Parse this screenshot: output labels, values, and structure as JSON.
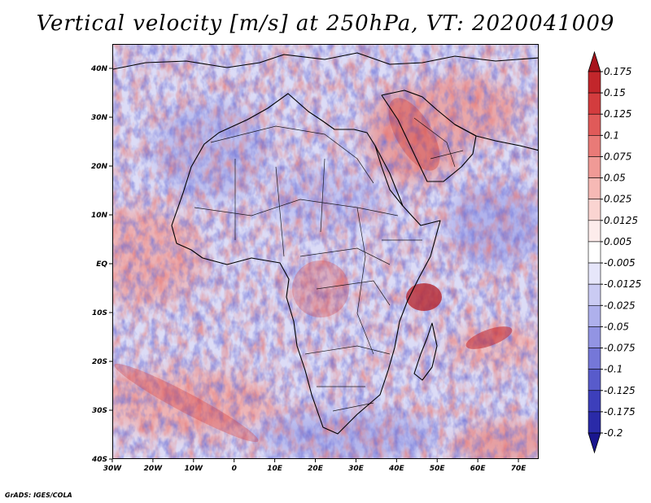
{
  "title": "Vertical velocity [m/s] at 250hPa, VT: 2020041009",
  "footer": "GrADS: IGES/COLA",
  "colors": {
    "positive_strong": "#b31e26",
    "negative_strong": "#1e24a8",
    "neutral": "#ffffff",
    "coastline": "#000000"
  },
  "chart_data": {
    "type": "heatmap",
    "variable": "Vertical velocity",
    "units": "m/s",
    "level": "250hPa",
    "valid_time": "2020041009",
    "lon_range": [
      -30,
      75
    ],
    "lat_range": [
      -40,
      45
    ],
    "x_ticks": [
      {
        "value": -30,
        "label": "30W"
      },
      {
        "value": -20,
        "label": "20W"
      },
      {
        "value": -10,
        "label": "10W"
      },
      {
        "value": 0,
        "label": "0"
      },
      {
        "value": 10,
        "label": "10E"
      },
      {
        "value": 20,
        "label": "20E"
      },
      {
        "value": 30,
        "label": "30E"
      },
      {
        "value": 40,
        "label": "40E"
      },
      {
        "value": 50,
        "label": "50E"
      },
      {
        "value": 60,
        "label": "60E"
      },
      {
        "value": 70,
        "label": "70E"
      }
    ],
    "y_ticks": [
      {
        "value": 40,
        "label": "40N"
      },
      {
        "value": 30,
        "label": "30N"
      },
      {
        "value": 20,
        "label": "20N"
      },
      {
        "value": 10,
        "label": "10N"
      },
      {
        "value": 0,
        "label": "EQ"
      },
      {
        "value": -10,
        "label": "10S"
      },
      {
        "value": -20,
        "label": "20S"
      },
      {
        "value": -30,
        "label": "30S"
      },
      {
        "value": -40,
        "label": "40S"
      }
    ],
    "colorbar": {
      "levels": [
        {
          "label": "0.175",
          "color": "#a8141c"
        },
        {
          "label": "0.15",
          "color": "#c2262b"
        },
        {
          "label": "0.125",
          "color": "#d33c3e"
        },
        {
          "label": "0.1",
          "color": "#e05a59"
        },
        {
          "label": "0.075",
          "color": "#e97a77"
        },
        {
          "label": "0.05",
          "color": "#f09a96"
        },
        {
          "label": "0.025",
          "color": "#f6b9b5"
        },
        {
          "label": "0.0125",
          "color": "#fad4d1"
        },
        {
          "label": "0.005",
          "color": "#fdeceb"
        },
        {
          "label": "-0.005",
          "color": "#ffffff"
        },
        {
          "label": "-0.0125",
          "color": "#e6e6fa"
        },
        {
          "label": "-0.025",
          "color": "#cacbf3"
        },
        {
          "label": "-0.05",
          "color": "#aeb0ec"
        },
        {
          "label": "-0.075",
          "color": "#9294e3"
        },
        {
          "label": "-0.1",
          "color": "#7577d8"
        },
        {
          "label": "-0.125",
          "color": "#585bcb"
        },
        {
          "label": "-0.175",
          "color": "#3d3fbb"
        },
        {
          "label": "-0.2",
          "color": "#2a2aa8"
        }
      ],
      "bottom_color": "#1a168f",
      "top_color": "#a8141c"
    },
    "notable_features": [
      {
        "name": "strong ascent east of Madagascar",
        "lon": 53,
        "lat": -8,
        "sign": "positive"
      },
      {
        "name": "ascent over Red Sea / Arabia",
        "lon": 40,
        "lat": 25,
        "sign": "positive"
      },
      {
        "name": "ascent band South Atlantic",
        "lon": -22,
        "lat": -30,
        "sign": "positive"
      }
    ]
  }
}
